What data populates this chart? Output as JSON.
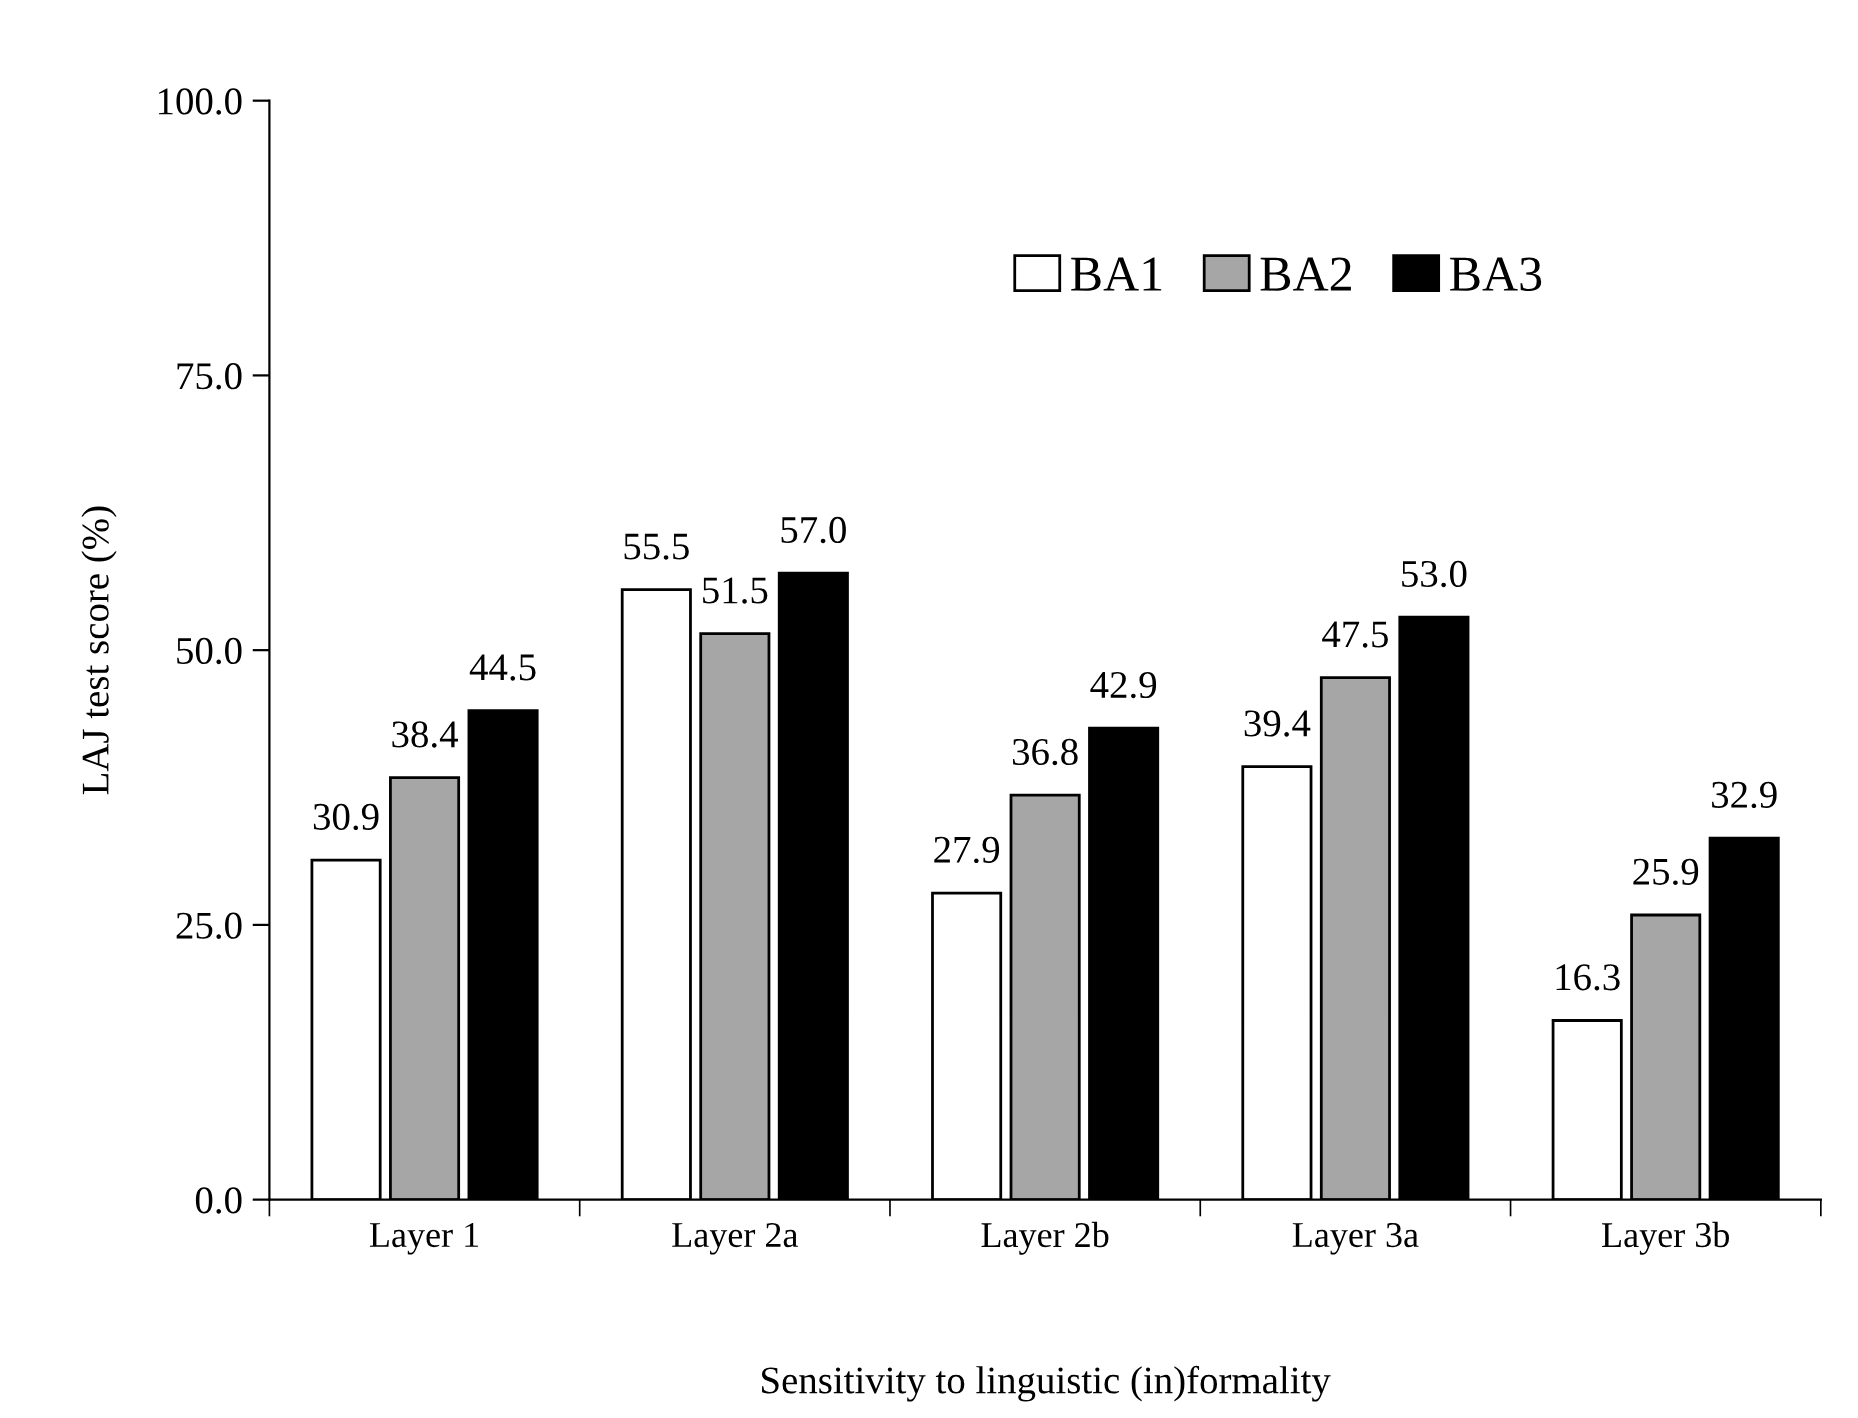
{
  "chart_data": {
    "type": "bar",
    "xlabel": "Sensitivity to linguistic (in)formality",
    "ylabel": "LAJ test score (%)",
    "categories": [
      "Layer 1",
      "Layer 2a",
      "Layer 2b",
      "Layer 3a",
      "Layer 3b"
    ],
    "series": [
      {
        "name": "BA1",
        "color": "#ffffff",
        "values": [
          30.9,
          55.5,
          27.9,
          39.4,
          16.3
        ],
        "value_labels": [
          "30.9",
          "55.5",
          "27.9",
          "39.4",
          "16.3"
        ]
      },
      {
        "name": "BA2",
        "color": "#a6a6a6",
        "values": [
          38.4,
          51.5,
          36.8,
          47.5,
          25.9
        ],
        "value_labels": [
          "38.4",
          "51.5",
          "36.8",
          "47.5",
          "25.9"
        ]
      },
      {
        "name": "BA3",
        "color": "#000000",
        "values": [
          44.5,
          57.0,
          42.9,
          53.0,
          32.9
        ],
        "value_labels": [
          "44.5",
          "57.0",
          "42.9",
          "53.0",
          "32.9"
        ]
      }
    ],
    "ylim": [
      0,
      100
    ],
    "yticks": [
      {
        "value": 0,
        "label": "0.0"
      },
      {
        "value": 25,
        "label": "25.0"
      },
      {
        "value": 50,
        "label": "50.0"
      },
      {
        "value": 75,
        "label": "75.0"
      },
      {
        "value": 100,
        "label": "100.0"
      }
    ],
    "legend": "top right",
    "grid": false
  }
}
